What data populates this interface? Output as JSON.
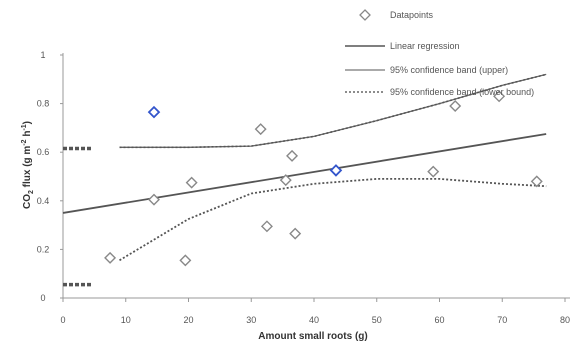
{
  "chart_data": {
    "type": "scatter",
    "xlabel": "Amount small roots (g)",
    "ylabel": "CO2 flux (g m-2 h-1)",
    "ylabel_parts": {
      "prefix": "CO",
      "sub": "2",
      "mid": " flux (g m",
      "sup1": "-2",
      "mid2": " h",
      "sup2": "-1",
      "suffix": ")"
    },
    "xlim": [
      0,
      80
    ],
    "ylim": [
      0,
      1
    ],
    "x_ticks": [
      "0",
      "10",
      "20",
      "30",
      "40",
      "50",
      "60",
      "70",
      "80"
    ],
    "x_tick_values": [
      0,
      10,
      20,
      30,
      40,
      50,
      60,
      70,
      80
    ],
    "y_ticks": [
      "0",
      "0.2",
      "0.4",
      "0.6",
      "0.8",
      "1"
    ],
    "y_tick_values": [
      0,
      0.2,
      0.4,
      0.6,
      0.8,
      1
    ],
    "grid": false,
    "legend_position": "top-right",
    "legend": [
      {
        "label": "Datapoints",
        "kind": "marker"
      },
      {
        "label": "Linear regression",
        "kind": "solid"
      },
      {
        "label": "95% confidence band (upper)",
        "kind": "solid-gray"
      },
      {
        "label": "95% confidence band (lower bound)",
        "kind": "dotted"
      }
    ],
    "points": [
      {
        "x": 7.5,
        "y": 0.165,
        "highlight": false
      },
      {
        "x": 14.5,
        "y": 0.405,
        "highlight": false
      },
      {
        "x": 14.5,
        "y": 0.765,
        "highlight": true
      },
      {
        "x": 19.5,
        "y": 0.155,
        "highlight": false
      },
      {
        "x": 20.5,
        "y": 0.475,
        "highlight": false
      },
      {
        "x": 31.5,
        "y": 0.695,
        "highlight": false
      },
      {
        "x": 32.5,
        "y": 0.295,
        "highlight": false
      },
      {
        "x": 35.5,
        "y": 0.485,
        "highlight": false
      },
      {
        "x": 36.5,
        "y": 0.585,
        "highlight": false
      },
      {
        "x": 37.0,
        "y": 0.265,
        "highlight": false
      },
      {
        "x": 43.5,
        "y": 0.525,
        "highlight": true
      },
      {
        "x": 59.0,
        "y": 0.52,
        "highlight": false
      },
      {
        "x": 62.5,
        "y": 0.79,
        "highlight": false
      },
      {
        "x": 69.5,
        "y": 0.83,
        "highlight": false
      },
      {
        "x": 75.5,
        "y": 0.48,
        "highlight": false
      }
    ],
    "regression": {
      "x": [
        0,
        77
      ],
      "y": [
        0.35,
        0.675
      ]
    },
    "ci_upper": {
      "x": [
        9,
        20,
        30,
        40,
        50,
        60,
        70,
        77
      ],
      "y": [
        0.62,
        0.62,
        0.625,
        0.665,
        0.73,
        0.8,
        0.875,
        0.92
      ]
    },
    "ci_lower": {
      "x": [
        9,
        20,
        30,
        40,
        50,
        60,
        70,
        77
      ],
      "y": [
        0.155,
        0.325,
        0.43,
        0.47,
        0.49,
        0.49,
        0.47,
        0.46
      ]
    },
    "y_markers": [
      0.615,
      0.055
    ],
    "colors": {
      "marker": "#888888",
      "marker_highlight": "#3355cc",
      "regression": "#555555",
      "ci_upper": "#666666",
      "ci_lower": "#555555",
      "y_marker": "#555555",
      "axis": "#999999"
    }
  }
}
